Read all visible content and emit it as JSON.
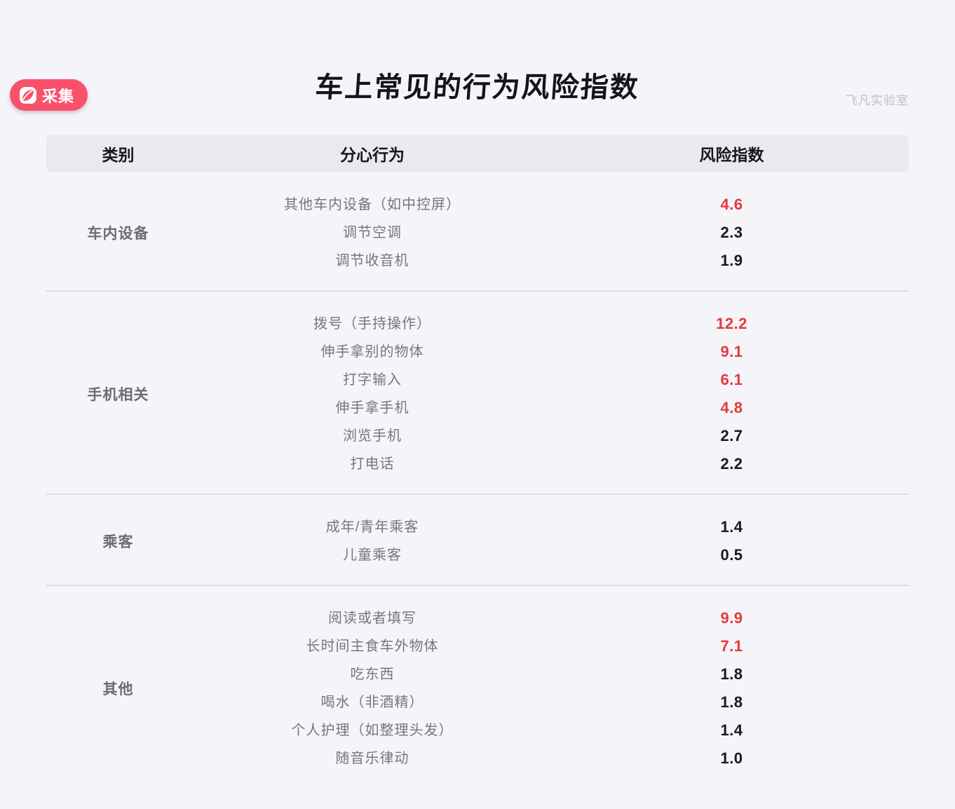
{
  "badge": {
    "label": "采集"
  },
  "watermark": "飞凡实验室",
  "chart_data": {
    "type": "table",
    "title": "车上常见的行为风险指数",
    "columns": {
      "category": "类别",
      "behavior": "分心行为",
      "risk": "风险指数"
    },
    "groups": [
      {
        "category": "车内设备",
        "rows": [
          {
            "behavior": "其他车内设备（如中控屏）",
            "value": "4.6",
            "high_risk": true
          },
          {
            "behavior": "调节空调",
            "value": "2.3",
            "high_risk": false
          },
          {
            "behavior": "调节收音机",
            "value": "1.9",
            "high_risk": false
          }
        ]
      },
      {
        "category": "手机相关",
        "rows": [
          {
            "behavior": "拨号（手持操作）",
            "value": "12.2",
            "high_risk": true
          },
          {
            "behavior": "伸手拿别的物体",
            "value": "9.1",
            "high_risk": true
          },
          {
            "behavior": "打字输入",
            "value": "6.1",
            "high_risk": true
          },
          {
            "behavior": "伸手拿手机",
            "value": "4.8",
            "high_risk": true
          },
          {
            "behavior": "浏览手机",
            "value": "2.7",
            "high_risk": false
          },
          {
            "behavior": "打电话",
            "value": "2.2",
            "high_risk": false
          }
        ]
      },
      {
        "category": "乘客",
        "rows": [
          {
            "behavior": "成年/青年乘客",
            "value": "1.4",
            "high_risk": false
          },
          {
            "behavior": "儿童乘客",
            "value": "0.5",
            "high_risk": false
          }
        ]
      },
      {
        "category": "其他",
        "rows": [
          {
            "behavior": "阅读或者填写",
            "value": "9.9",
            "high_risk": true
          },
          {
            "behavior": "长时间主食车外物体",
            "value": "7.1",
            "high_risk": true
          },
          {
            "behavior": "吃东西",
            "value": "1.8",
            "high_risk": false
          },
          {
            "behavior": "喝水（非酒精）",
            "value": "1.8",
            "high_risk": false
          },
          {
            "behavior": "个人护理（如整理头发）",
            "value": "1.4",
            "high_risk": false
          },
          {
            "behavior": "随音乐律动",
            "value": "1.0",
            "high_risk": false
          }
        ]
      }
    ]
  },
  "colors": {
    "page_background": "#f4f4f9",
    "header_background": "#e9e9ef",
    "risk_red": "#e5393b",
    "text_black": "#19191d",
    "text_gray": "#76767f",
    "badge_pink": "#f8516c"
  }
}
